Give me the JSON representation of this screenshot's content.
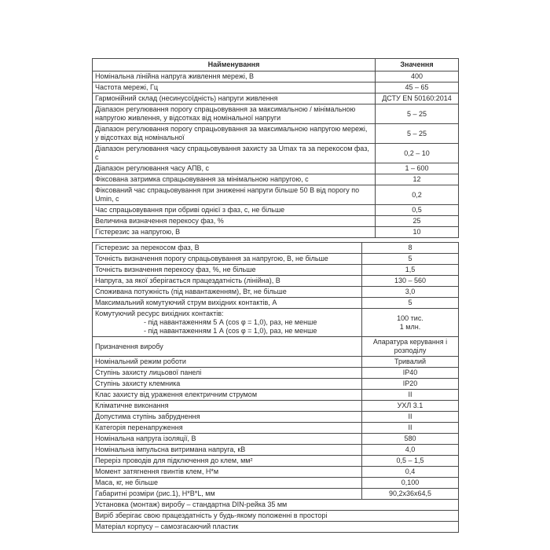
{
  "document": {
    "colors": {
      "background": "#ffffff",
      "border": "#4a4a4a",
      "text": "#2b2b2b"
    },
    "header": {
      "name_col": "Найменування",
      "value_col": "Значення"
    },
    "table1_rows": [
      {
        "name": "Номінальна лінійна напруга живлення мережі, В",
        "value": "400"
      },
      {
        "name": "Частота мережі, Гц",
        "value": "45 – 65"
      },
      {
        "name": "Гармонійний склад (несинусоїдність) напруги живлення",
        "value": "ДСТУ EN 50160:2014"
      },
      {
        "name": "Діапазон регулювання порогу спрацьовування за максимальною / мінімальною напругою живлення, у відсотках від номінальної напруги",
        "value": "5 – 25"
      },
      {
        "name": "Діапазон регулювання порогу спрацьовування за максимальною напругою мережі,  у відсотках від номінальної",
        "value": "5 – 25"
      },
      {
        "name": "Діапазон регулювання часу спрацьовування захисту за Umax та за перекосом фаз, с",
        "value": "0,2 – 10"
      },
      {
        "name": "Діапазон регулювання часу АПВ, с",
        "value": "1 – 600"
      },
      {
        "name": "Фіксована затримка спрацьовування за мінімальною напругою, с",
        "value": "12"
      },
      {
        "name": "Фіксований час спрацьовування при зниженні напруги більше 50 В від порогу по Umin, с",
        "value": "0,2"
      },
      {
        "name": "Час спрацьовування при обриві однієї з фаз, с, не більше",
        "value": "0,5"
      },
      {
        "name": "Величина визначення перекосу фаз, %",
        "value": "25"
      },
      {
        "name": "Гістерезис за напругою, В",
        "value": "10"
      }
    ],
    "table2_rows": [
      {
        "name": "Гістерезис за перекосом фаз, В",
        "value": "8"
      },
      {
        "name": "Точність визначення порогу спрацьовування за напругою, В, не більше",
        "value": "5"
      },
      {
        "name": "Точність визначення перекосу фаз, %, не більше",
        "value": "1,5"
      },
      {
        "name": "Напруга, за якої зберігається працездатність (лінійна), В",
        "value": "130 – 560"
      },
      {
        "name": "Споживана потужність (під навантаженням), Вт, не більше",
        "value": "3,0"
      },
      {
        "name": "Максимальний комутуючий струм вихідних контактів, А",
        "value": "5"
      },
      {
        "name": "Комутуючий ресурс вихідних контактів:",
        "sub_lines": [
          "- під навантаженням 5 А (cos φ = 1,0), раз, не менше",
          "- під навантаженням 1 А (cos φ = 1,0), раз, не менше"
        ],
        "value_lines": [
          "100 тис.",
          "1 млн."
        ]
      },
      {
        "name": "Призначення виробу",
        "value": "Апаратура керування і розподілу"
      },
      {
        "name": "Номінальний режим роботи",
        "value": "Тривалий"
      },
      {
        "name": "Ступінь захисту лицьової панелі",
        "value": "IP40"
      },
      {
        "name": "Ступінь захисту клемника",
        "value": "IP20"
      },
      {
        "name": "Клас захисту від ураження електричним струмом",
        "value": "II"
      },
      {
        "name": "Кліматичне виконання",
        "value": "УХЛ 3.1"
      },
      {
        "name": "Допустима ступінь забруднення",
        "value": "II"
      },
      {
        "name": "Категорія перенапруження",
        "value": "II"
      },
      {
        "name": "Номінальна напруга ізоляції, В",
        "value": "580"
      },
      {
        "name": "Номінальна імпульсна витримана напруга, кВ",
        "value": "4,0"
      },
      {
        "name": "Переріз проводів для підключення до клем, мм²",
        "value": "0,5 – 1,5"
      },
      {
        "name": "Момент затягнення гвинтів клем, Н*м",
        "value": "0,4"
      },
      {
        "name": "Маса, кг, не більше",
        "value": "0,100"
      },
      {
        "name": "Габаритні розміри (рис.1), H*B*L, мм",
        "value": "90,2x36x64,5"
      }
    ],
    "table2_full_rows": [
      "Установка (монтаж) виробу – стандартна DIN-рейка 35 мм",
      "Виріб зберігає свою працездатність у будь-якому положенні в просторі",
      "Матеріал корпусу – самозгасаючий пластик"
    ]
  }
}
